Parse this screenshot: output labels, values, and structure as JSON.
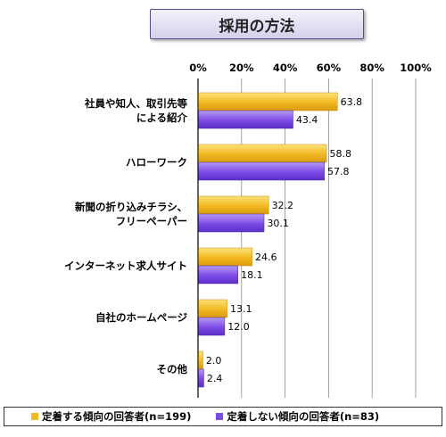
{
  "chart_data": {
    "type": "bar",
    "orientation": "horizontal",
    "title": "採用の方法",
    "categories": [
      [
        "社員や知人、取引先等",
        "による紹介"
      ],
      [
        "ハローワーク"
      ],
      [
        "新聞の折り込みチラシ、",
        "フリーペーパー"
      ],
      [
        "インターネット求人サイト"
      ],
      [
        "自社のホームページ"
      ],
      [
        "その他"
      ]
    ],
    "series": [
      {
        "name": "定着する傾向の回答者(n=199)",
        "values": [
          63.8,
          58.8,
          32.2,
          24.6,
          13.1,
          2.0
        ],
        "labels": [
          "63.8",
          "58.8",
          "32.2",
          "24.6",
          "13.1",
          "2.0"
        ],
        "color": "#f3b820"
      },
      {
        "name": "定着しない傾向の回答者(n=83)",
        "values": [
          43.4,
          57.8,
          30.1,
          18.1,
          12.0,
          2.4
        ],
        "labels": [
          "43.4",
          "57.8",
          "30.1",
          "18.1",
          "12.0",
          "2.4"
        ],
        "color": "#7d4be6"
      }
    ],
    "xlim": [
      0,
      100
    ],
    "xticks": [
      "0%",
      "20%",
      "40%",
      "60%",
      "80%",
      "100%"
    ],
    "grid": true,
    "legend_position": "bottom"
  }
}
